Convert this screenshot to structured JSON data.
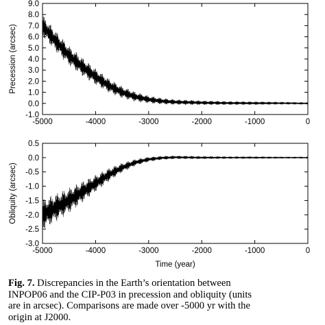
{
  "chart_data": [
    {
      "type": "line",
      "title": "",
      "xlabel": "",
      "ylabel": "Precession (arcsec)",
      "xlim": [
        -5000,
        0
      ],
      "ylim": [
        -1.0,
        9.0
      ],
      "x_ticks": [
        "-5000",
        "-4000",
        "-3000",
        "-2000",
        "-1000",
        "0"
      ],
      "y_ticks": [
        "-1.0",
        "0.0",
        "1.0",
        "2.0",
        "3.0",
        "4.0",
        "5.0",
        "6.0",
        "7.0",
        "8.0",
        "9.0"
      ],
      "grid": false,
      "color": "#000000",
      "series": [
        {
          "x": [
            -5000,
            -4750,
            -4500,
            -4250,
            -4000,
            -3750,
            -3500,
            -3250,
            -3000,
            -2750,
            -2500,
            -2000,
            -1500,
            -1000,
            -500,
            0
          ],
          "center": [
            7.0,
            5.6,
            4.3,
            3.3,
            2.4,
            1.6,
            1.0,
            0.6,
            0.35,
            0.2,
            0.12,
            0.06,
            0.03,
            0.02,
            0.02,
            0.0
          ],
          "amplitude": [
            1.0,
            0.95,
            0.9,
            0.85,
            0.75,
            0.65,
            0.55,
            0.45,
            0.35,
            0.3,
            0.25,
            0.2,
            0.17,
            0.15,
            0.12,
            0.1
          ]
        }
      ]
    },
    {
      "type": "line",
      "title": "",
      "xlabel": "Time (year)",
      "ylabel": "Obliquity (arcsec)",
      "xlim": [
        -5000,
        0
      ],
      "ylim": [
        -3.0,
        0.5
      ],
      "x_ticks": [
        "-5000",
        "-4000",
        "-3000",
        "-2000",
        "-1000",
        "0"
      ],
      "y_ticks": [
        "-3.0",
        "-2.5",
        "-2.0",
        "-1.5",
        "-1.0",
        "-0.5",
        "0.0",
        "0.5"
      ],
      "grid": false,
      "color": "#000000",
      "series": [
        {
          "x": [
            -5000,
            -4750,
            -4500,
            -4250,
            -4000,
            -3750,
            -3500,
            -3250,
            -3000,
            -2750,
            -2500,
            -2000,
            -1500,
            -1000,
            -500,
            0
          ],
          "center": [
            -2.0,
            -1.75,
            -1.5,
            -1.2,
            -0.9,
            -0.6,
            -0.35,
            -0.17,
            -0.06,
            -0.01,
            0.01,
            0.0,
            0.0,
            0.0,
            0.0,
            0.0
          ],
          "amplitude": [
            0.55,
            0.5,
            0.45,
            0.38,
            0.3,
            0.24,
            0.17,
            0.12,
            0.09,
            0.07,
            0.06,
            0.05,
            0.04,
            0.04,
            0.03,
            0.03
          ]
        }
      ]
    }
  ],
  "caption": {
    "label": "Fig. 7.",
    "lines": [
      "Discrepancies in the Earth’s orientation between",
      "INPOP06 and the CIP-P03 in precession and obliquity (units",
      "are in arcsec). Comparisons are made over -5000 yr with the",
      "origin at J2000."
    ]
  }
}
